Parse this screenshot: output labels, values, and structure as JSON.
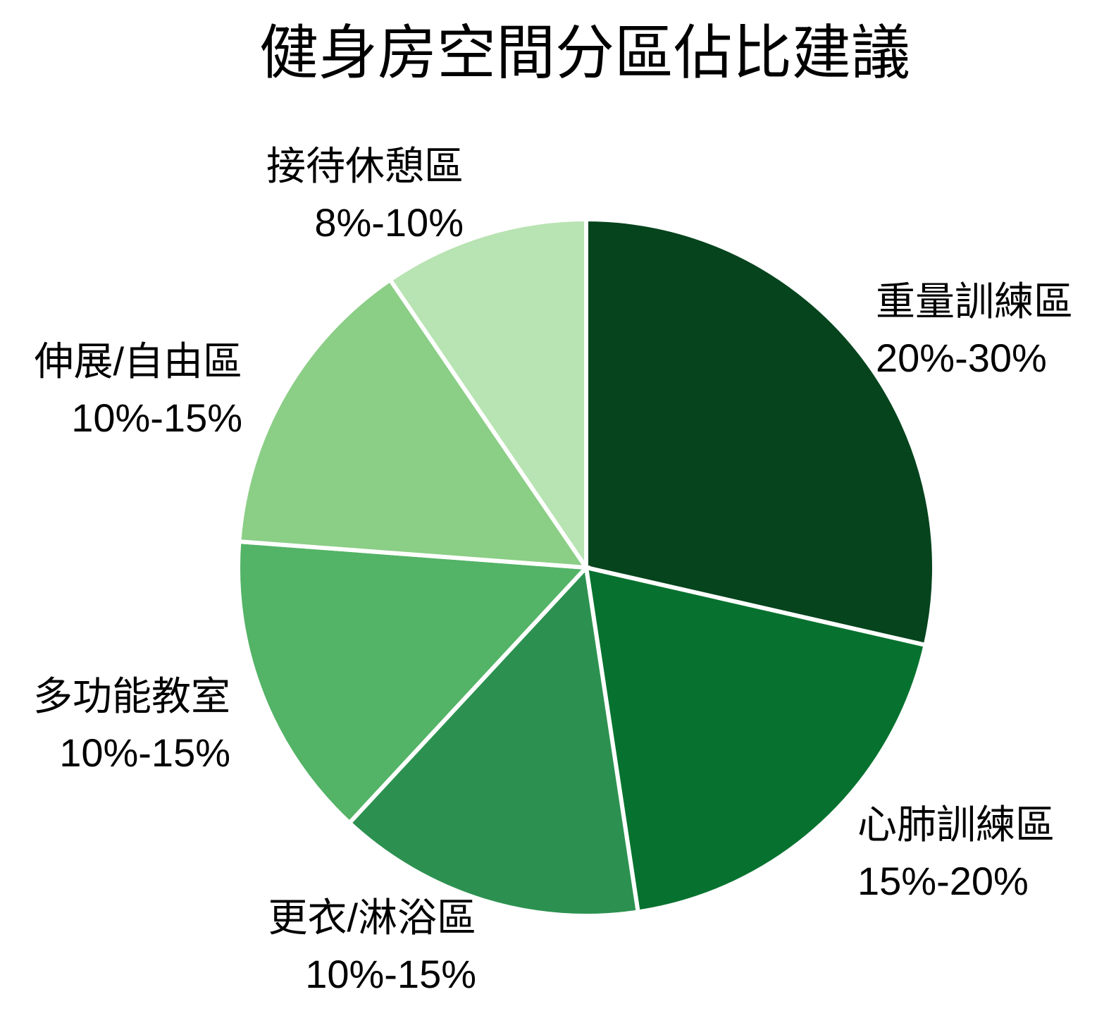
{
  "title": "健身房空間分區佔比建議",
  "chart_data": {
    "type": "pie",
    "title": "健身房空間分區佔比建議",
    "start_angle_deg": 0,
    "direction": "clockwise",
    "slice_gap_color": "#FFFFFF",
    "background_color": "#FFFFFF",
    "slices": [
      {
        "label": "重量訓練區",
        "range": "20%-30%",
        "arc_value": 30,
        "color": "#05441D"
      },
      {
        "label": "心肺訓練區",
        "range": "15%-20%",
        "arc_value": 20,
        "color": "#07722F"
      },
      {
        "label": "更衣/淋浴區",
        "range": "10%-15%",
        "arc_value": 15,
        "color": "#2C9150"
      },
      {
        "label": "多功能教室",
        "range": "10%-15%",
        "arc_value": 15,
        "color": "#53B366"
      },
      {
        "label": "伸展/自由區",
        "range": "10%-15%",
        "arc_value": 15,
        "color": "#8BCE86"
      },
      {
        "label": "接待休憩區",
        "range": "8%-10%",
        "arc_value": 10,
        "color": "#B8E3B2"
      }
    ]
  }
}
